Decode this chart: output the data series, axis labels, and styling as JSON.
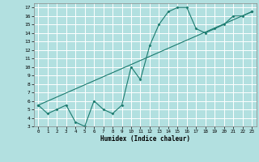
{
  "xlabel": "Humidex (Indice chaleur)",
  "ylabel": "",
  "xlim": [
    -0.5,
    23.5
  ],
  "ylim": [
    3,
    17.5
  ],
  "yticks": [
    3,
    4,
    5,
    6,
    7,
    8,
    9,
    10,
    11,
    12,
    13,
    14,
    15,
    16,
    17
  ],
  "xticks": [
    0,
    1,
    2,
    3,
    4,
    5,
    6,
    7,
    8,
    9,
    10,
    11,
    12,
    13,
    14,
    15,
    16,
    17,
    18,
    19,
    20,
    21,
    22,
    23
  ],
  "bg_color": "#b2e0e0",
  "grid_color": "#ffffff",
  "line_color": "#1a7a6e",
  "curve1_x": [
    0,
    1,
    2,
    3,
    4,
    5,
    6,
    7,
    8,
    9,
    10,
    11,
    12,
    13,
    14,
    15,
    16,
    17,
    18,
    19,
    20,
    21,
    22,
    23
  ],
  "curve1_y": [
    5.5,
    4.5,
    5.0,
    5.5,
    3.5,
    3.0,
    6.0,
    5.0,
    4.5,
    5.5,
    10.0,
    8.5,
    12.5,
    15.0,
    16.5,
    17.0,
    17.0,
    14.5,
    14.0,
    14.5,
    15.0,
    16.0,
    16.0,
    16.5
  ],
  "curve2_x": [
    0,
    23
  ],
  "curve2_y": [
    5.5,
    16.5
  ]
}
